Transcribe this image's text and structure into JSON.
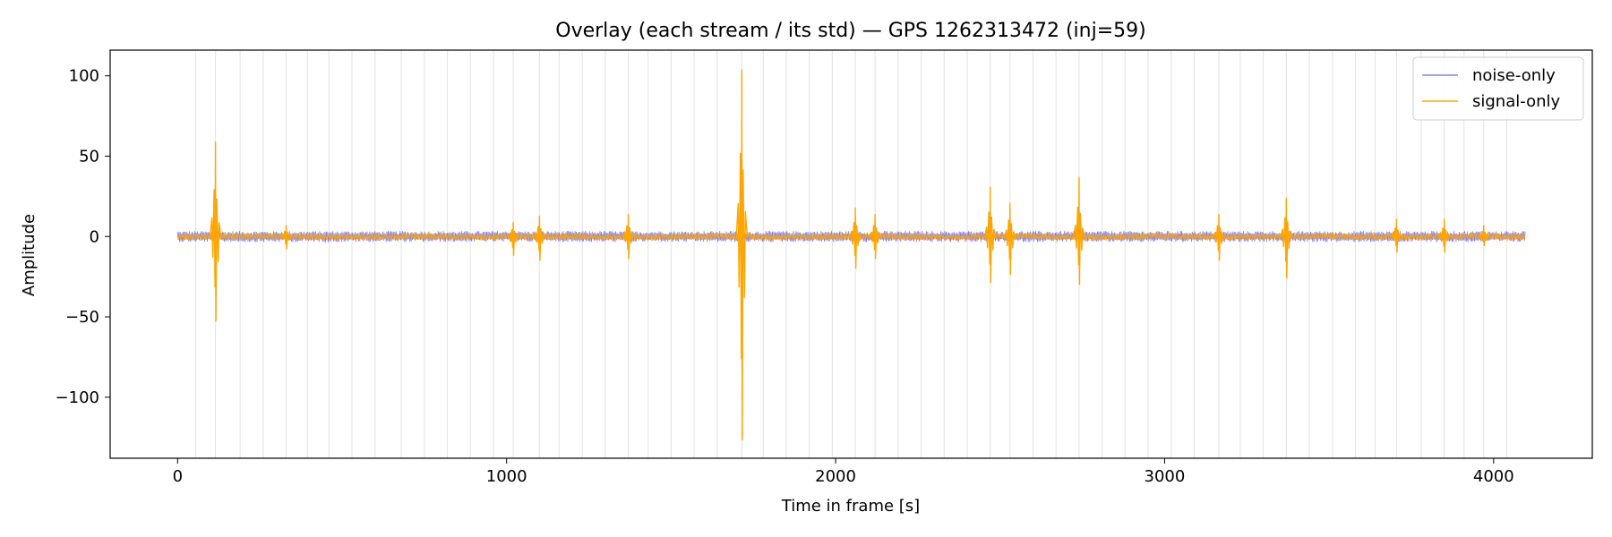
{
  "chart_data": {
    "type": "line",
    "title": "Overlay (each stream / its std) — GPS 1262313472 (inj=59)",
    "xlabel": "Time in frame [s]",
    "ylabel": "Amplitude",
    "xlim": [
      -205,
      4300
    ],
    "ylim": [
      -138,
      116
    ],
    "xticks": [
      0,
      1000,
      2000,
      3000,
      4000
    ],
    "xtick_labels": [
      "0",
      "1000",
      "2000",
      "3000",
      "4000"
    ],
    "yticks": [
      100,
      50,
      0,
      -50,
      -100
    ],
    "ytick_labels": [
      "100",
      "50",
      "0",
      "−50",
      "−100"
    ],
    "grid": false,
    "legend_position": "top-right",
    "series": [
      {
        "name": "noise-only",
        "color": "#6666ff",
        "x_range": [
          0,
          4096
        ],
        "amplitude_envelope": [
          -3.5,
          3.5
        ]
      },
      {
        "name": "signal-only",
        "color": "#ffa500",
        "x_range": [
          0,
          4096
        ],
        "baseline_envelope": [
          -2,
          2
        ],
        "bursts": [
          {
            "t": 115,
            "max": 59,
            "min": -53
          },
          {
            "t": 330,
            "max": 7,
            "min": -8
          },
          {
            "t": 1020,
            "max": 9,
            "min": -12
          },
          {
            "t": 1100,
            "max": 13,
            "min": -15
          },
          {
            "t": 1370,
            "max": 14,
            "min": -14
          },
          {
            "t": 1715,
            "max": 104,
            "min": -127
          },
          {
            "t": 2060,
            "max": 18,
            "min": -20
          },
          {
            "t": 2120,
            "max": 14,
            "min": -14
          },
          {
            "t": 2470,
            "max": 31,
            "min": -29
          },
          {
            "t": 2530,
            "max": 21,
            "min": -24
          },
          {
            "t": 2740,
            "max": 37,
            "min": -30
          },
          {
            "t": 3165,
            "max": 14,
            "min": -15
          },
          {
            "t": 3370,
            "max": 24,
            "min": -26
          },
          {
            "t": 3705,
            "max": 11,
            "min": -10
          },
          {
            "t": 3850,
            "max": 11,
            "min": -10
          },
          {
            "t": 3970,
            "max": 7,
            "min": -6
          }
        ]
      }
    ],
    "vlines": {
      "color": "#e6e6e6",
      "x": [
        55,
        115,
        190,
        260,
        330,
        395,
        460,
        530,
        600,
        680,
        750,
        820,
        890,
        960,
        1020,
        1100,
        1160,
        1230,
        1300,
        1370,
        1430,
        1500,
        1570,
        1640,
        1715,
        1780,
        1850,
        1920,
        1990,
        2060,
        2120,
        2190,
        2260,
        2330,
        2400,
        2470,
        2530,
        2600,
        2670,
        2740,
        2810,
        2880,
        2950,
        3020,
        3090,
        3165,
        3230,
        3300,
        3370,
        3440,
        3510,
        3580,
        3640,
        3705,
        3780,
        3850,
        3910,
        3970,
        4040
      ]
    }
  }
}
